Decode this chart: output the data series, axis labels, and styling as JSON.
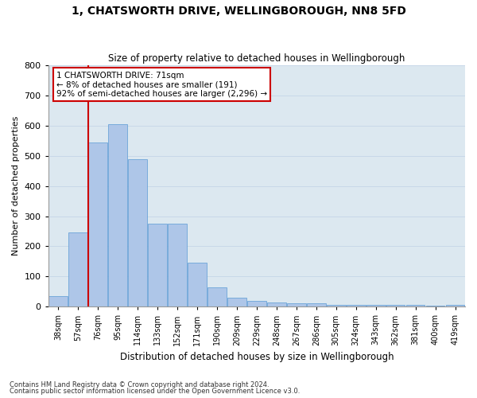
{
  "title1": "1, CHATSWORTH DRIVE, WELLINGBOROUGH, NN8 5FD",
  "title2": "Size of property relative to detached houses in Wellingborough",
  "xlabel": "Distribution of detached houses by size in Wellingborough",
  "ylabel": "Number of detached properties",
  "footnote1": "Contains HM Land Registry data © Crown copyright and database right 2024.",
  "footnote2": "Contains public sector information licensed under the Open Government Licence v3.0.",
  "annotation_line1": "1 CHATSWORTH DRIVE: 71sqm",
  "annotation_line2": "← 8% of detached houses are smaller (191)",
  "annotation_line3": "92% of semi-detached houses are larger (2,296) →",
  "categories": [
    "38sqm",
    "57sqm",
    "76sqm",
    "95sqm",
    "114sqm",
    "133sqm",
    "152sqm",
    "171sqm",
    "190sqm",
    "209sqm",
    "229sqm",
    "248sqm",
    "267sqm",
    "286sqm",
    "305sqm",
    "324sqm",
    "343sqm",
    "362sqm",
    "381sqm",
    "400sqm",
    "419sqm"
  ],
  "values": [
    35,
    245,
    545,
    605,
    490,
    275,
    275,
    145,
    65,
    30,
    20,
    15,
    12,
    10,
    7,
    5,
    7,
    5,
    5,
    3,
    5
  ],
  "bar_color": "#aec6e8",
  "bar_edge_color": "#5b9bd5",
  "marker_line_color": "#cc0000",
  "annotation_box_color": "#ffffff",
  "annotation_box_edge": "#cc0000",
  "ylim": [
    0,
    800
  ],
  "yticks": [
    0,
    100,
    200,
    300,
    400,
    500,
    600,
    700,
    800
  ],
  "grid_color": "#c8d8e8",
  "background_color": "#dce8f0"
}
